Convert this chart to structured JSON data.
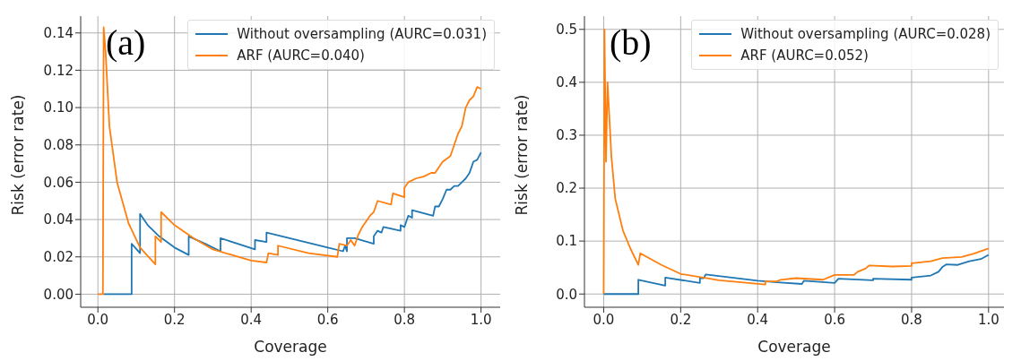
{
  "chart_data": [
    {
      "type": "line",
      "xlabel": "Coverage",
      "ylabel": "Risk (error rate)",
      "annotations": [
        "(a)"
      ],
      "grid": true,
      "legend": "top right",
      "xlim": [
        -0.045,
        1.05
      ],
      "ylim": [
        -0.007,
        0.149
      ],
      "xticks": [
        {
          "value": 0,
          "label": "0.0"
        },
        {
          "value": 0.2,
          "label": "0.2"
        },
        {
          "value": 0.4,
          "label": "0.4"
        },
        {
          "value": 0.6,
          "label": "0.6"
        },
        {
          "value": 0.8,
          "label": "0.8"
        },
        {
          "value": 1,
          "label": "1.0"
        }
      ],
      "yticks": [
        {
          "value": 0,
          "label": "0.00"
        },
        {
          "value": 0.02,
          "label": "0.02"
        },
        {
          "value": 0.04,
          "label": "0.04"
        },
        {
          "value": 0.06,
          "label": "0.06"
        },
        {
          "value": 0.08,
          "label": "0.08"
        },
        {
          "value": 0.1,
          "label": "0.10"
        },
        {
          "value": 0.12,
          "label": "0.12"
        },
        {
          "value": 0.14,
          "label": "0.14"
        }
      ],
      "series": [
        {
          "name": "Without oversampling (AURC=0.031)",
          "color": "#1f77b4",
          "x": [
            0.015,
            0.088,
            0.088,
            0.11,
            0.11,
            0.13,
            0.16,
            0.2,
            0.237,
            0.237,
            0.28,
            0.32,
            0.32,
            0.41,
            0.41,
            0.44,
            0.44,
            0.5,
            0.6,
            0.64,
            0.645,
            0.65,
            0.65,
            0.67,
            0.72,
            0.72,
            0.73,
            0.74,
            0.745,
            0.79,
            0.79,
            0.8,
            0.81,
            0.82,
            0.82,
            0.875,
            0.88,
            0.89,
            0.9,
            0.91,
            0.92,
            0.93,
            0.94,
            0.95,
            0.96,
            0.97,
            0.98,
            0.99,
            1.0
          ],
          "values": [
            0,
            0,
            0.027,
            0.022,
            0.043,
            0.037,
            0.031,
            0.025,
            0.021,
            0.031,
            0.027,
            0.023,
            0.03,
            0.024,
            0.029,
            0.028,
            0.033,
            0.03,
            0.025,
            0.023,
            0.026,
            0.023,
            0.03,
            0.03,
            0.027,
            0.031,
            0.034,
            0.033,
            0.036,
            0.034,
            0.037,
            0.036,
            0.042,
            0.041,
            0.045,
            0.042,
            0.047,
            0.047,
            0.051,
            0.056,
            0.056,
            0.058,
            0.058,
            0.06,
            0.062,
            0.065,
            0.071,
            0.072,
            0.076
          ]
        },
        {
          "name": "ARF (AURC=0.040)",
          "color": "#ff7f0e",
          "x": [
            0,
            0.013,
            0.015,
            0.02,
            0.03,
            0.05,
            0.08,
            0.11,
            0.15,
            0.15,
            0.165,
            0.165,
            0.2,
            0.25,
            0.3,
            0.35,
            0.4,
            0.44,
            0.445,
            0.47,
            0.47,
            0.55,
            0.625,
            0.63,
            0.65,
            0.66,
            0.67,
            0.68,
            0.69,
            0.7,
            0.71,
            0.72,
            0.73,
            0.765,
            0.77,
            0.8,
            0.8,
            0.81,
            0.83,
            0.85,
            0.87,
            0.88,
            0.9,
            0.92,
            0.93,
            0.94,
            0.95,
            0.96,
            0.97,
            0.98,
            0.99,
            1.0
          ],
          "values": [
            0,
            0,
            0.143,
            0.13,
            0.09,
            0.06,
            0.038,
            0.025,
            0.016,
            0.031,
            0.028,
            0.044,
            0.037,
            0.03,
            0.024,
            0.021,
            0.018,
            0.017,
            0.022,
            0.021,
            0.026,
            0.022,
            0.02,
            0.027,
            0.026,
            0.029,
            0.026,
            0.032,
            0.036,
            0.039,
            0.042,
            0.044,
            0.05,
            0.048,
            0.054,
            0.052,
            0.057,
            0.06,
            0.062,
            0.063,
            0.065,
            0.065,
            0.071,
            0.074,
            0.08,
            0.086,
            0.09,
            0.1,
            0.104,
            0.106,
            0.111,
            0.11
          ]
        }
      ]
    },
    {
      "type": "line",
      "xlabel": "Coverage",
      "ylabel": "Risk (error rate)",
      "annotations": [
        "(b)"
      ],
      "grid": true,
      "legend": "top right",
      "xlim": [
        -0.05,
        1.04
      ],
      "ylim": [
        -0.025,
        0.525
      ],
      "xticks": [
        {
          "value": 0,
          "label": "0.0"
        },
        {
          "value": 0.2,
          "label": "0.2"
        },
        {
          "value": 0.4,
          "label": "0.4"
        },
        {
          "value": 0.6,
          "label": "0.6"
        },
        {
          "value": 0.8,
          "label": "0.8"
        },
        {
          "value": 1,
          "label": "1.0"
        }
      ],
      "yticks": [
        {
          "value": 0,
          "label": "0.0"
        },
        {
          "value": 0.1,
          "label": "0.1"
        },
        {
          "value": 0.2,
          "label": "0.2"
        },
        {
          "value": 0.3,
          "label": "0.3"
        },
        {
          "value": 0.4,
          "label": "0.4"
        },
        {
          "value": 0.5,
          "label": "0.5"
        }
      ],
      "series": [
        {
          "name": "Without oversampling (AURC=0.028)",
          "color": "#1f77b4",
          "x": [
            0,
            0.09,
            0.09,
            0.16,
            0.16,
            0.25,
            0.25,
            0.26,
            0.265,
            0.4,
            0.45,
            0.515,
            0.52,
            0.6,
            0.61,
            0.7,
            0.7,
            0.8,
            0.8,
            0.85,
            0.87,
            0.88,
            0.89,
            0.92,
            0.95,
            0.98,
            1.0
          ],
          "values": [
            0,
            0,
            0.027,
            0.016,
            0.031,
            0.021,
            0.03,
            0.03,
            0.037,
            0.025,
            0.022,
            0.019,
            0.025,
            0.021,
            0.029,
            0.026,
            0.029,
            0.027,
            0.031,
            0.035,
            0.042,
            0.051,
            0.056,
            0.055,
            0.062,
            0.066,
            0.074
          ]
        },
        {
          "name": "ARF (AURC=0.052)",
          "color": "#ff7f0e",
          "x": [
            0,
            0.002,
            0.006,
            0.01,
            0.02,
            0.03,
            0.05,
            0.07,
            0.09,
            0.095,
            0.15,
            0.2,
            0.3,
            0.42,
            0.42,
            0.45,
            0.46,
            0.5,
            0.57,
            0.6,
            0.65,
            0.66,
            0.68,
            0.69,
            0.75,
            0.8,
            0.8,
            0.85,
            0.88,
            0.93,
            0.96,
            1.0
          ],
          "values": [
            0,
            0.5,
            0.25,
            0.4,
            0.26,
            0.18,
            0.12,
            0.085,
            0.055,
            0.077,
            0.055,
            0.038,
            0.026,
            0.018,
            0.024,
            0.024,
            0.027,
            0.03,
            0.027,
            0.036,
            0.036,
            0.042,
            0.048,
            0.054,
            0.052,
            0.053,
            0.058,
            0.062,
            0.068,
            0.07,
            0.076,
            0.086
          ]
        }
      ]
    }
  ]
}
